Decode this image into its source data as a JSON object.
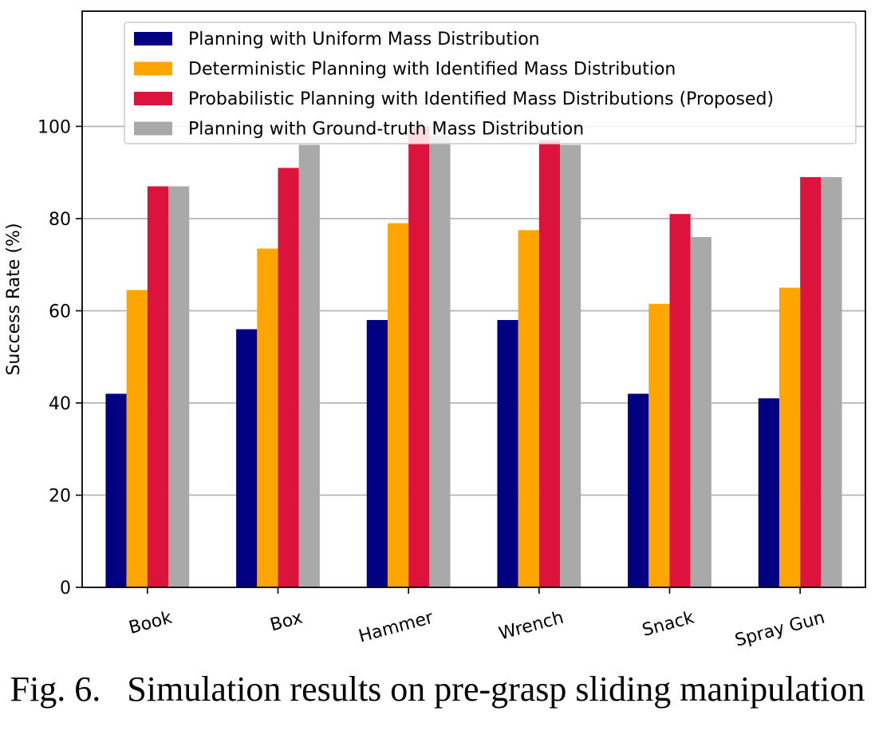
{
  "chart_data": {
    "type": "bar",
    "title": "",
    "xlabel": "",
    "ylabel": "Success Rate (%)",
    "ylim": [
      0,
      125
    ],
    "yticks": [
      0,
      20,
      40,
      60,
      80,
      100
    ],
    "grid": "horizontal",
    "legend_position": "top-right",
    "categories": [
      "Book",
      "Box",
      "Hammer",
      "Wrench",
      "Snack",
      "Spray Gun"
    ],
    "series": [
      {
        "name": "Planning with Uniform Mass Distribution",
        "color": "#000080",
        "values": [
          42,
          56,
          58,
          58,
          42,
          41
        ]
      },
      {
        "name": "Deterministic Planning with Identified Mass Distribution",
        "color": "#FFA500",
        "values": [
          64.5,
          73.5,
          79,
          77.5,
          61.5,
          65
        ]
      },
      {
        "name": "Probabilistic Planning with Identified Mass Distributions (Proposed)",
        "color": "#DC143C",
        "values": [
          87,
          91,
          100,
          97,
          81,
          89
        ]
      },
      {
        "name": "Planning with Ground-truth Mass Distribution",
        "color": "#A9A9A9",
        "values": [
          87,
          96,
          98,
          96,
          76,
          89
        ]
      }
    ]
  },
  "caption": {
    "text": "Fig. 6.   Simulation results on pre-grasp sliding manipulation"
  }
}
